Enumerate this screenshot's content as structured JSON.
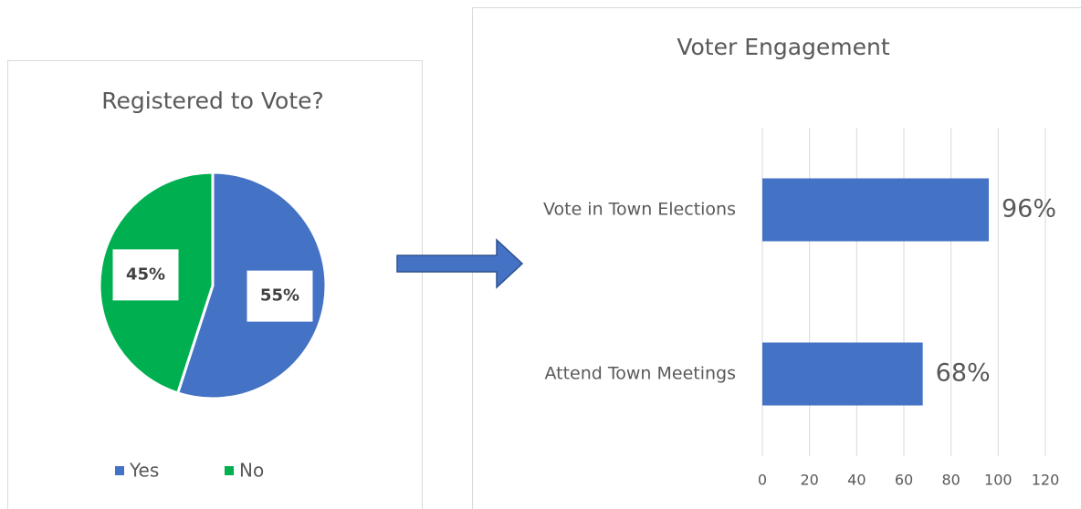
{
  "chart_data": [
    {
      "type": "pie",
      "title": "Registered to Vote?",
      "categories": [
        "Yes",
        "No"
      ],
      "values": [
        55,
        45
      ],
      "value_labels": [
        "55%",
        "45%"
      ],
      "colors": [
        "#4472c4",
        "#00b050"
      ],
      "legend": "bottom"
    },
    {
      "type": "bar",
      "orientation": "horizontal",
      "title": "Voter Engagement",
      "categories": [
        "Vote in Town Elections",
        "Attend Town Meetings"
      ],
      "values": [
        96,
        68
      ],
      "value_labels": [
        "96%",
        "68%"
      ],
      "color": "#4472c4",
      "xlim": [
        0,
        120
      ],
      "xticks": [
        0,
        20,
        40,
        60,
        80,
        100,
        120
      ],
      "grid": true
    }
  ]
}
